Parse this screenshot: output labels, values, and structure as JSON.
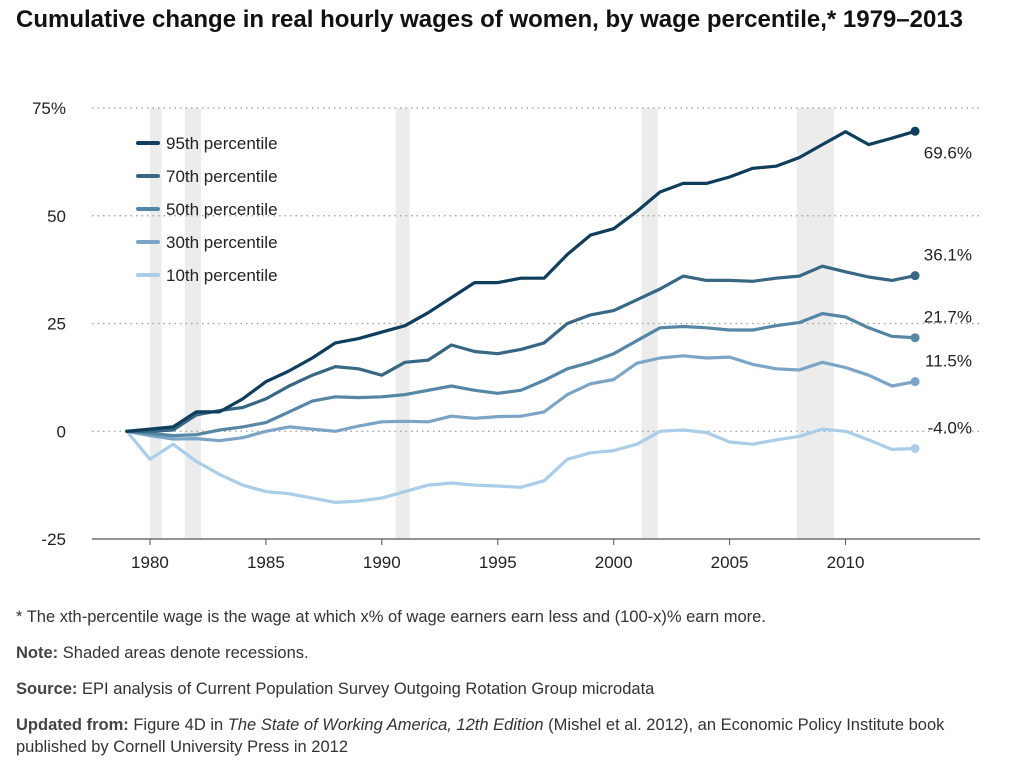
{
  "title": "Cumulative change in real hourly wages of women, by wage percentile,* 1979–2013",
  "chart_data": {
    "type": "line",
    "title": "Cumulative change in real hourly wages of women, by wage percentile,* 1979–2013",
    "xlim": [
      1977.5,
      2015.8
    ],
    "ylim": [
      -25,
      75
    ],
    "x_ticks": [
      "1980",
      "1985",
      "1990",
      "1995",
      "2000",
      "2005",
      "2010"
    ],
    "y_ticks": [
      "75%",
      "50",
      "25",
      "0",
      "-25"
    ],
    "grid": "horizontal-dotted",
    "legend_position": "top-left",
    "recessions": [
      [
        1980.0,
        1980.5
      ],
      [
        1981.5,
        1982.2
      ],
      [
        1990.6,
        1991.2
      ],
      [
        2001.2,
        2001.9
      ],
      [
        2007.9,
        2009.5
      ]
    ],
    "x": [
      1979,
      1980,
      1981,
      1982,
      1983,
      1984,
      1985,
      1986,
      1987,
      1988,
      1989,
      1990,
      1991,
      1992,
      1993,
      1994,
      1995,
      1996,
      1997,
      1998,
      1999,
      2000,
      2001,
      2002,
      2003,
      2004,
      2005,
      2006,
      2007,
      2008,
      2009,
      2010,
      2011,
      2012,
      2013
    ],
    "series": [
      {
        "name": "95th percentile",
        "color": "#0f3d5c",
        "end_label": "69.6%",
        "values": [
          0,
          0.5,
          1,
          4.5,
          4.5,
          7.5,
          11.5,
          14,
          17,
          20.5,
          21.5,
          23,
          24.5,
          27.5,
          31,
          34.5,
          34.5,
          35.5,
          35.5,
          41,
          45.5,
          47,
          51,
          55.5,
          57.5,
          57.5,
          59,
          61,
          61.5,
          63.5,
          66.5,
          69.5,
          66.5,
          68,
          69.6
        ]
      },
      {
        "name": "70th percentile",
        "color": "#376785",
        "end_label": "36.1%",
        "values": [
          0,
          0,
          0.3,
          3.8,
          4.8,
          5.5,
          7.5,
          10.5,
          13,
          15,
          14.5,
          13,
          16,
          16.5,
          20,
          18.5,
          18,
          19,
          20.5,
          25,
          27,
          28,
          30.5,
          33,
          36,
          35,
          35,
          34.8,
          35.5,
          36,
          38.3,
          37,
          35.8,
          35,
          36.1
        ]
      },
      {
        "name": "50th percentile",
        "color": "#5686a6",
        "end_label": "21.7%",
        "values": [
          0,
          -0.5,
          -1,
          -0.8,
          0.3,
          1,
          2,
          4.5,
          7,
          8,
          7.8,
          8,
          8.5,
          9.5,
          10.5,
          9.5,
          8.8,
          9.5,
          11.8,
          14.5,
          16,
          18,
          21,
          24,
          24.3,
          24,
          23.5,
          23.5,
          24.5,
          25.2,
          27.3,
          26.5,
          24,
          22,
          21.7
        ]
      },
      {
        "name": "30th percentile",
        "color": "#7aa5c7",
        "end_label": "11.5%",
        "values": [
          0,
          -1,
          -1.8,
          -1.7,
          -2.2,
          -1.5,
          0,
          1,
          0.5,
          0,
          1.2,
          2.2,
          2.3,
          2.2,
          3.5,
          3,
          3.4,
          3.5,
          4.5,
          8.5,
          11,
          12,
          15.8,
          17,
          17.5,
          17,
          17.2,
          15.5,
          14.5,
          14.2,
          16,
          14.8,
          13,
          10.5,
          11.5
        ]
      },
      {
        "name": "10th percentile",
        "color": "#aacdea",
        "end_label": "-4.0%",
        "values": [
          0,
          -6.5,
          -3,
          -7,
          -10,
          -12.5,
          -14,
          -14.5,
          -15.5,
          -16.5,
          -16.2,
          -15.5,
          -14,
          -12.5,
          -12,
          -12.5,
          -12.7,
          -13,
          -11.5,
          -6.5,
          -5,
          -4.5,
          -3,
          0,
          0.3,
          -0.3,
          -2.5,
          -3,
          -2,
          -1.2,
          0.5,
          0,
          -2,
          -4.2,
          -4
        ]
      }
    ]
  },
  "footnotes": {
    "asterisk": "* The xth-percentile wage is the wage at which x% of wage earners earn less and (100-x)% earn more.",
    "note_label": "Note:",
    "note_text": " Shaded areas denote recessions.",
    "source_label": "Source:",
    "source_text": " EPI analysis of Current Population Survey Outgoing Rotation Group microdata",
    "updated_label": "Updated from:",
    "updated_pre": " Figure 4D in ",
    "updated_italic": "The State of Working America, 12th Edition",
    "updated_post": " (Mishel et al. 2012), an Economic Policy Institute book published by Cornell University Press in 2012"
  }
}
